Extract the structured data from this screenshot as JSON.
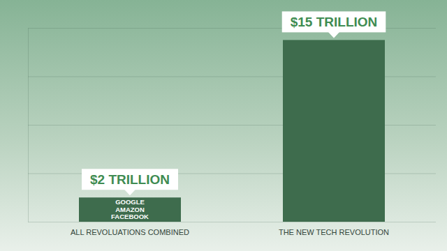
{
  "chart_data": {
    "type": "bar",
    "categories": [
      "ALL REVOLUATIONS COMBINED",
      "THE NEW TECH REVOLUTION"
    ],
    "values": [
      2,
      15
    ],
    "value_labels": [
      "$2 TRILLION",
      "$15 TRILLION"
    ],
    "data_labels": true,
    "annotations": [
      "GOOGLE",
      "AMAZON",
      "FACEBOOK"
    ],
    "color": "#3e6c4d",
    "ylim": [
      0,
      16
    ],
    "yticks": [
      0,
      4,
      8,
      12,
      16
    ],
    "grid": true,
    "tick_labels": "x"
  }
}
